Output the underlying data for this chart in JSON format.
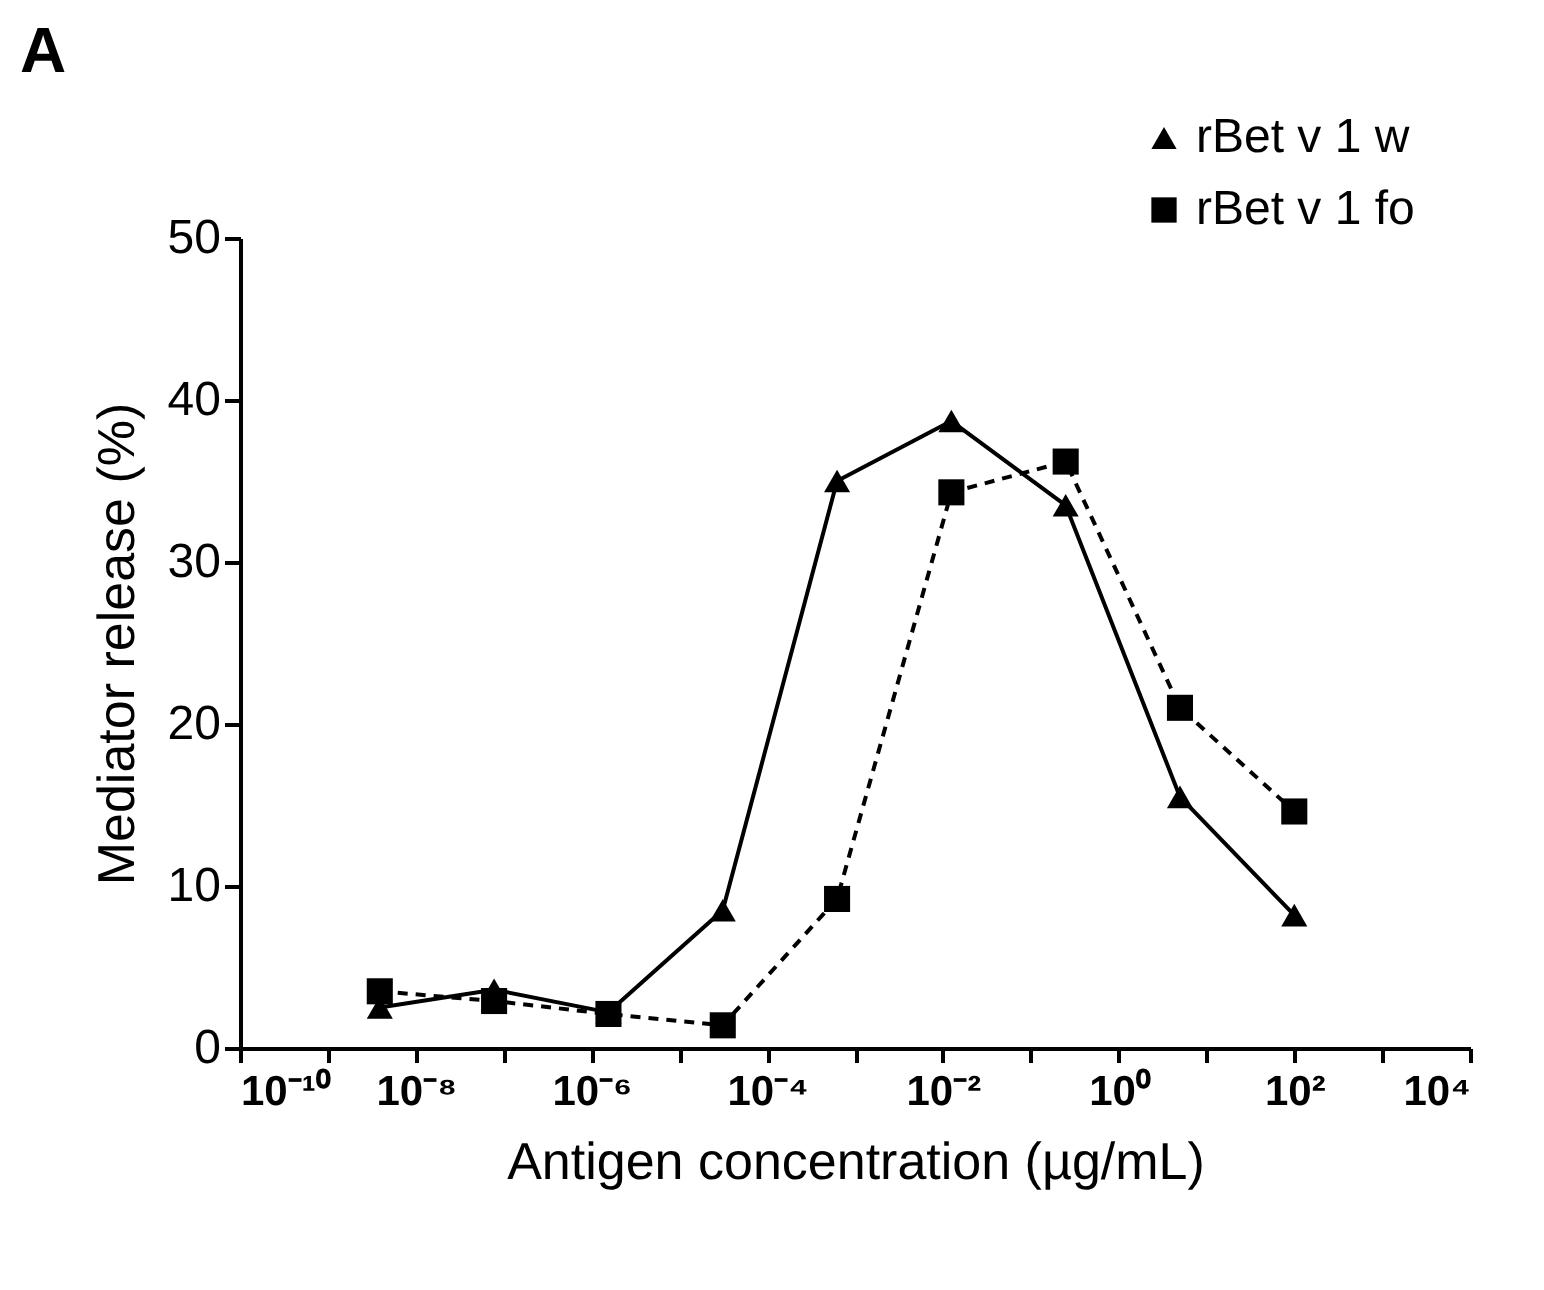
{
  "chart_data": {
    "type": "line",
    "title": "A",
    "xlabel": "Antigen concentration (µg/mL)",
    "ylabel": "Mediator release (%)",
    "x": [
      3.9e-09,
      7.8e-08,
      1.5625e-06,
      3.125e-05,
      0.000625,
      0.0125,
      0.25,
      5,
      100
    ],
    "series": [
      {
        "name": "rBet v 1 w",
        "color": "#000000",
        "marker": "triangle",
        "line_style": "solid",
        "values": [
          2.5,
          3.6,
          2.2,
          8.5,
          35.0,
          38.7,
          33.5,
          15.5,
          8.2
        ]
      },
      {
        "name": "rBet v 1 fo",
        "color": "#000000",
        "marker": "square",
        "line_style": "dashed",
        "values": [
          3.5,
          2.9,
          2.1,
          1.4,
          9.2,
          34.3,
          36.2,
          21.0,
          14.6
        ]
      }
    ],
    "log": "x",
    "xlim": [
      1e-10,
      10000
    ],
    "xticks": [
      {
        "value": 1e-10,
        "label": "10⁻¹⁰"
      },
      {
        "value": 1e-09,
        "label": null
      },
      {
        "value": 1e-08,
        "label": "10⁻⁸"
      },
      {
        "value": 1e-07,
        "label": null
      },
      {
        "value": 1e-06,
        "label": "10⁻⁶"
      },
      {
        "value": 1e-05,
        "label": null
      },
      {
        "value": 0.0001,
        "label": "10⁻⁴"
      },
      {
        "value": 0.001,
        "label": null
      },
      {
        "value": 0.01,
        "label": "10⁻²"
      },
      {
        "value": 0.1,
        "label": null
      },
      {
        "value": 1,
        "label": "10⁰"
      },
      {
        "value": 10,
        "label": null
      },
      {
        "value": 100,
        "label": "10²"
      },
      {
        "value": 1000,
        "label": null
      },
      {
        "value": 10000,
        "label": "10⁴"
      }
    ],
    "ylim": [
      0,
      50
    ],
    "yticks": [
      0,
      10,
      20,
      30,
      40,
      50
    ],
    "grid": false,
    "legend": "top right"
  }
}
